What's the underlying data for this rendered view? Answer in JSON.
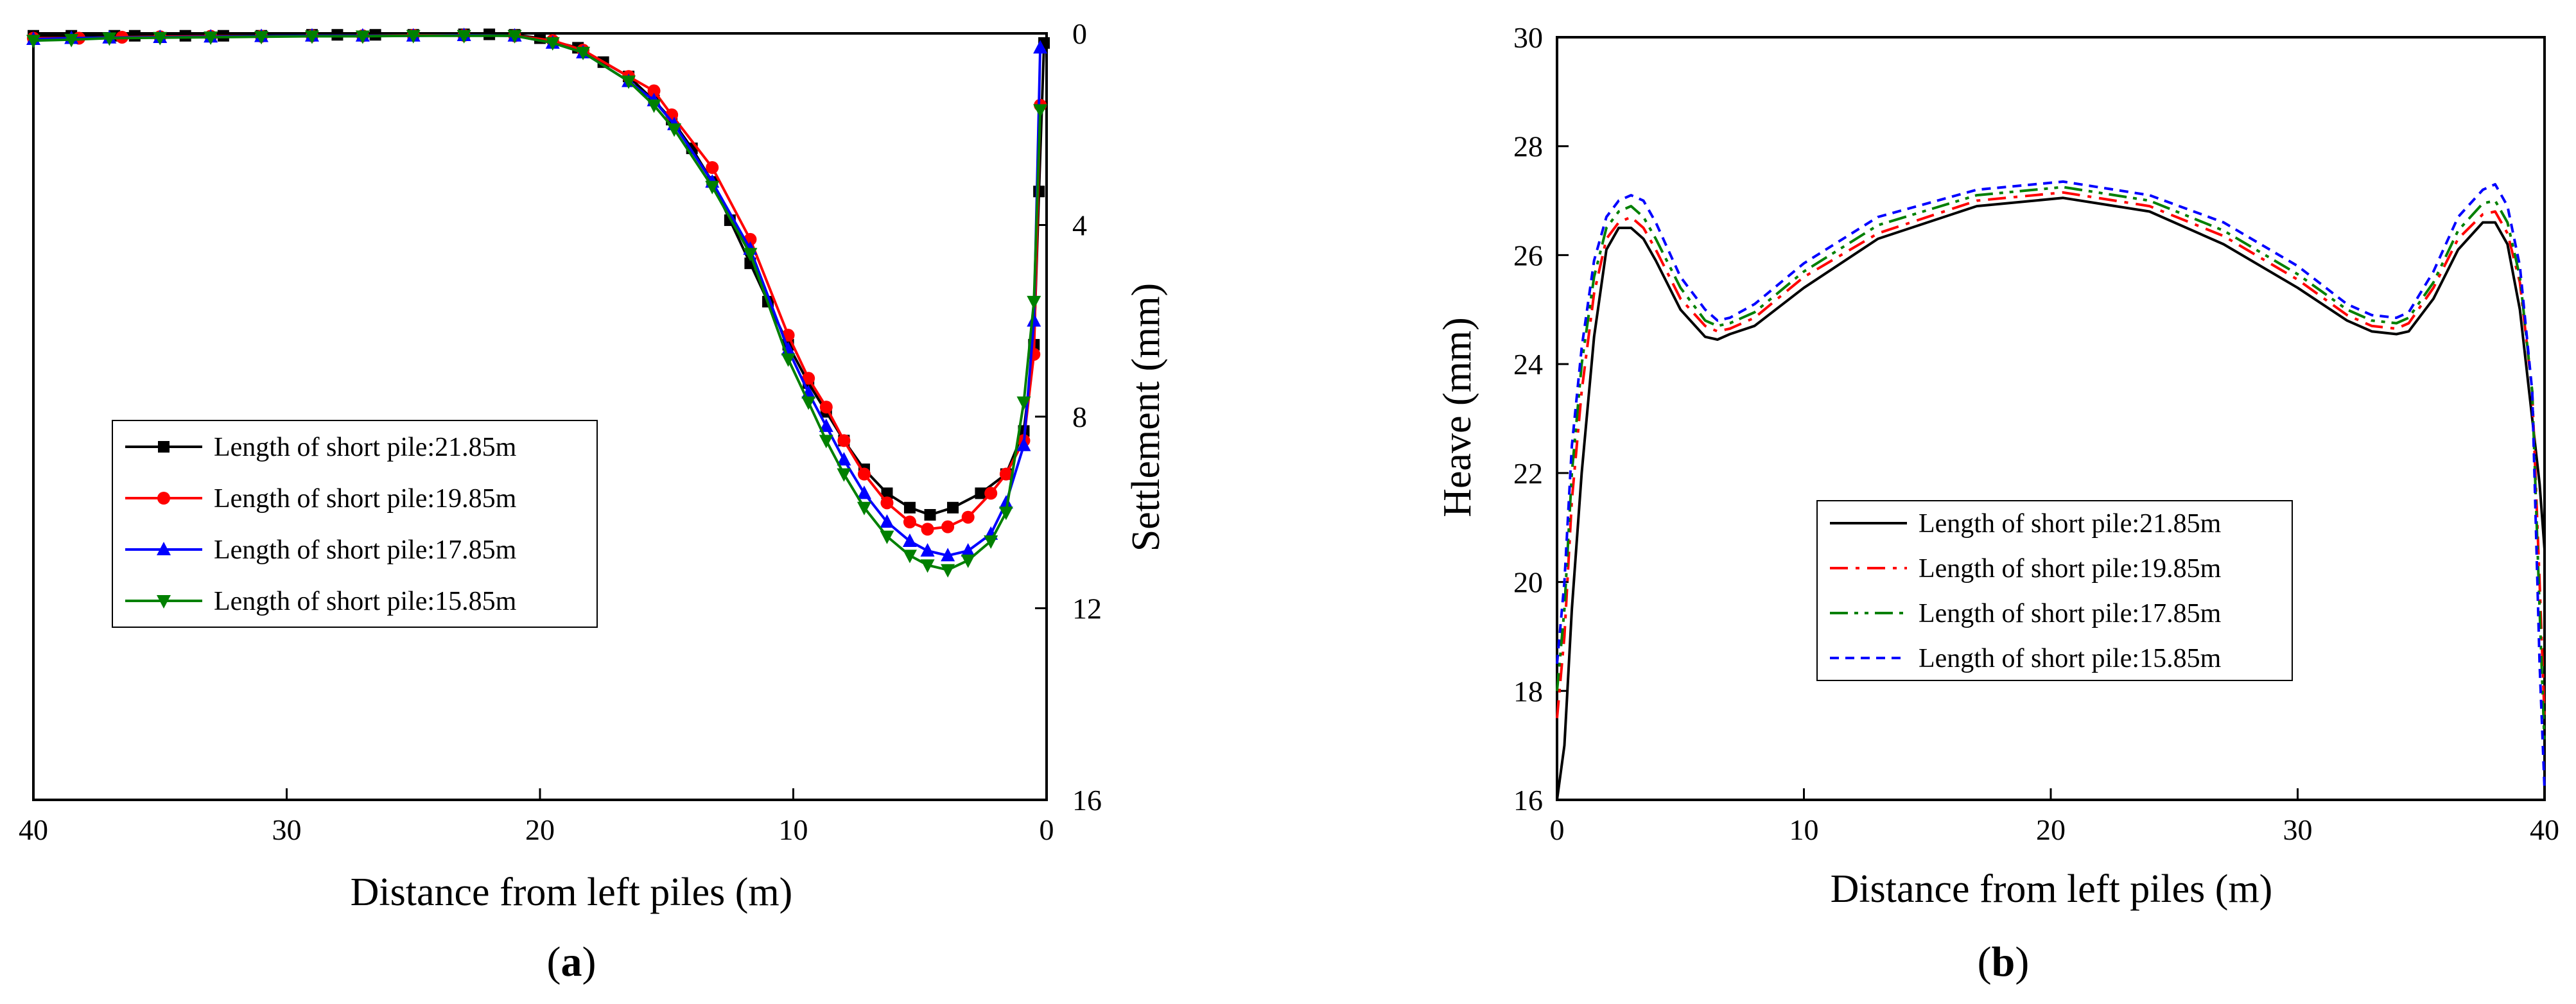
{
  "chart_data": [
    {
      "id": "a",
      "type": "line",
      "caption": {
        "open": "(",
        "letter": "a",
        "close": ")"
      },
      "xlabel": "Distance from left piles (m)",
      "ylabel": "Settlement (mm)",
      "xlim": [
        40,
        0
      ],
      "ylim": [
        0,
        16
      ],
      "x_ticks": [
        40,
        30,
        20,
        10,
        0
      ],
      "y_ticks": [
        0,
        4,
        8,
        12,
        16
      ],
      "y_axis_side": "right",
      "y_inverted": true,
      "legend": "middle-left",
      "series": [
        {
          "name": "Length of short pile:21.85m",
          "color": "#000000",
          "marker": "square",
          "x": [
            40,
            38.5,
            36.8,
            36,
            34,
            32.5,
            31,
            29,
            28,
            26.5,
            25,
            23,
            22,
            21,
            20,
            18.5,
            17.5,
            16.5,
            15.5,
            14.8,
            14,
            13.2,
            12.5,
            11.7,
            11,
            10.2,
            9.4,
            8.7,
            8,
            7.2,
            6.3,
            5.4,
            4.6,
            3.7,
            2.6,
            1.6,
            0.9,
            0.5,
            0.3,
            0.1
          ],
          "y": [
            0.05,
            0.05,
            0.05,
            0.05,
            0.05,
            0.05,
            0.05,
            0.03,
            0.03,
            0.03,
            0.03,
            0.02,
            0.02,
            0.03,
            0.1,
            0.3,
            0.6,
            0.9,
            1.4,
            1.8,
            2.4,
            3.1,
            3.9,
            4.8,
            5.6,
            6.5,
            7.3,
            7.9,
            8.5,
            9.1,
            9.6,
            9.9,
            10.05,
            9.9,
            9.6,
            9.2,
            8.3,
            6.5,
            3.3,
            0.2
          ]
        },
        {
          "name": "Length of short pile:19.85m",
          "color": "#ff0000",
          "marker": "circle",
          "x": [
            40,
            38.2,
            36.5,
            35,
            33,
            31,
            29,
            27,
            25,
            23,
            21,
            19.5,
            18.3,
            16.5,
            15.5,
            14.8,
            13.2,
            11.7,
            10.2,
            9.4,
            8.7,
            8,
            7.2,
            6.3,
            5.4,
            4.7,
            3.9,
            3.1,
            2.2,
            1.6,
            0.9,
            0.5,
            0.25
          ],
          "y": [
            0.1,
            0.1,
            0.08,
            0.07,
            0.06,
            0.06,
            0.05,
            0.05,
            0.04,
            0.04,
            0.05,
            0.15,
            0.35,
            0.9,
            1.2,
            1.7,
            2.8,
            4.3,
            6.3,
            7.2,
            7.8,
            8.5,
            9.2,
            9.8,
            10.2,
            10.35,
            10.3,
            10.1,
            9.6,
            9.2,
            8.5,
            6.7,
            1.5
          ]
        },
        {
          "name": "Length of short pile:17.85m",
          "color": "#0000ff",
          "marker": "triangle-up",
          "x": [
            40,
            38.5,
            37,
            35,
            33,
            31,
            29,
            27,
            25,
            23,
            21,
            19.5,
            18.3,
            16.5,
            15.5,
            14.7,
            13.2,
            11.7,
            10.2,
            9.4,
            8.7,
            8,
            7.2,
            6.3,
            5.4,
            4.7,
            3.9,
            3.1,
            2.2,
            1.6,
            0.9,
            0.5,
            0.25
          ],
          "y": [
            0.12,
            0.1,
            0.09,
            0.08,
            0.07,
            0.06,
            0.05,
            0.05,
            0.05,
            0.04,
            0.05,
            0.2,
            0.4,
            1.0,
            1.4,
            1.9,
            3.1,
            4.5,
            6.6,
            7.5,
            8.2,
            8.9,
            9.6,
            10.2,
            10.6,
            10.8,
            10.9,
            10.8,
            10.45,
            9.8,
            8.6,
            6.0,
            0.3
          ]
        },
        {
          "name": "Length of short pile:15.85m",
          "color": "#008000",
          "marker": "triangle-down",
          "x": [
            40,
            38.5,
            37,
            35,
            33,
            31,
            29,
            27,
            25,
            23,
            21,
            19.5,
            18.3,
            16.5,
            15.5,
            14.7,
            13.2,
            11.7,
            10.2,
            9.4,
            8.7,
            8,
            7.2,
            6.3,
            5.4,
            4.7,
            3.9,
            3.1,
            2.2,
            1.6,
            0.9,
            0.5,
            0.25
          ],
          "y": [
            0.15,
            0.13,
            0.1,
            0.09,
            0.08,
            0.07,
            0.06,
            0.06,
            0.05,
            0.05,
            0.05,
            0.2,
            0.4,
            1.0,
            1.5,
            2.0,
            3.2,
            4.6,
            6.8,
            7.7,
            8.5,
            9.2,
            9.9,
            10.5,
            10.9,
            11.1,
            11.2,
            11.0,
            10.6,
            10.0,
            7.7,
            5.6,
            1.6
          ]
        }
      ]
    },
    {
      "id": "b",
      "type": "line",
      "caption": {
        "open": "(",
        "letter": "b",
        "close": ")"
      },
      "xlabel": "Distance from left piles (m)",
      "ylabel": "Heave (mm)",
      "xlim": [
        0,
        40
      ],
      "ylim": [
        16,
        30
      ],
      "x_ticks": [
        0,
        10,
        20,
        30,
        40
      ],
      "y_ticks": [
        16,
        18,
        20,
        22,
        24,
        26,
        28,
        30
      ],
      "legend": "center",
      "series": [
        {
          "name": "Length of short pile:21.85m",
          "color": "#000000",
          "dash": "solid",
          "x": [
            0,
            0.3,
            0.6,
            1,
            1.5,
            2,
            2.5,
            3,
            3.5,
            4,
            5,
            6,
            6.5,
            7,
            8,
            10,
            13,
            17,
            20.5,
            24,
            27,
            30,
            32,
            33,
            34,
            34.5,
            35.5,
            36.5,
            37.5,
            38,
            38.5,
            39,
            39.5,
            39.8,
            40
          ],
          "y": [
            16,
            17,
            19.5,
            22,
            24.5,
            26.1,
            26.5,
            26.5,
            26.3,
            25.9,
            25.0,
            24.5,
            24.45,
            24.55,
            24.7,
            25.4,
            26.3,
            26.9,
            27.05,
            26.8,
            26.2,
            25.4,
            24.8,
            24.6,
            24.55,
            24.6,
            25.2,
            26.1,
            26.6,
            26.6,
            26.2,
            25.0,
            23.0,
            21.8,
            20.6
          ]
        },
        {
          "name": "Length of short pile:19.85m",
          "color": "#ff0000",
          "dash": "dashdot",
          "x": [
            0,
            0.3,
            0.6,
            1,
            1.5,
            2,
            2.5,
            3,
            3.5,
            4,
            5,
            6,
            6.5,
            7,
            8,
            10,
            13,
            17,
            20.5,
            24,
            27,
            30,
            32,
            33,
            34,
            34.5,
            35.5,
            36.5,
            37.5,
            38,
            38.5,
            39,
            39.5,
            39.8,
            40
          ],
          "y": [
            17.5,
            19,
            21.5,
            23.5,
            25.3,
            26.3,
            26.6,
            26.7,
            26.5,
            26.1,
            25.2,
            24.7,
            24.6,
            24.65,
            24.85,
            25.6,
            26.4,
            27.0,
            27.15,
            26.9,
            26.35,
            25.55,
            24.9,
            24.7,
            24.65,
            24.75,
            25.4,
            26.3,
            26.75,
            26.8,
            26.4,
            25.5,
            23.5,
            20,
            17.5
          ]
        },
        {
          "name": "Length of short pile:17.85m",
          "color": "#008000",
          "dash": "dashdotdot",
          "x": [
            0,
            0.3,
            0.6,
            1,
            1.5,
            2,
            2.5,
            3,
            3.5,
            4,
            5,
            6,
            6.5,
            7,
            8,
            10,
            13,
            17,
            20.5,
            24,
            27,
            30,
            32,
            33,
            34,
            34.5,
            35.5,
            36.5,
            37.5,
            38,
            38.5,
            39,
            39.5,
            39.8,
            40
          ],
          "y": [
            18,
            19.5,
            22,
            24,
            25.6,
            26.5,
            26.8,
            26.9,
            26.7,
            26.3,
            25.4,
            24.8,
            24.7,
            24.75,
            24.95,
            25.7,
            26.55,
            27.1,
            27.25,
            27.0,
            26.45,
            25.65,
            25.0,
            24.8,
            24.75,
            24.85,
            25.5,
            26.45,
            26.95,
            27.0,
            26.6,
            25.6,
            23.5,
            19.5,
            17
          ]
        },
        {
          "name": "Length of short pile:15.85m",
          "color": "#0000ff",
          "dash": "dashed",
          "x": [
            0,
            0.3,
            0.6,
            1,
            1.5,
            2,
            2.5,
            3,
            3.5,
            4,
            5,
            6,
            6.5,
            7,
            8,
            10,
            13,
            17,
            20.5,
            24,
            27,
            30,
            32,
            33,
            34,
            34.5,
            35.5,
            36.5,
            37.5,
            38,
            38.5,
            39,
            39.5,
            39.8,
            40
          ],
          "y": [
            18.5,
            20,
            22.5,
            24.3,
            25.9,
            26.7,
            27.0,
            27.1,
            27.0,
            26.6,
            25.6,
            25.0,
            24.8,
            24.85,
            25.1,
            25.85,
            26.7,
            27.2,
            27.35,
            27.1,
            26.6,
            25.8,
            25.1,
            24.9,
            24.85,
            24.95,
            25.7,
            26.7,
            27.2,
            27.3,
            26.9,
            25.8,
            23.5,
            18.5,
            16.2
          ]
        }
      ]
    }
  ]
}
